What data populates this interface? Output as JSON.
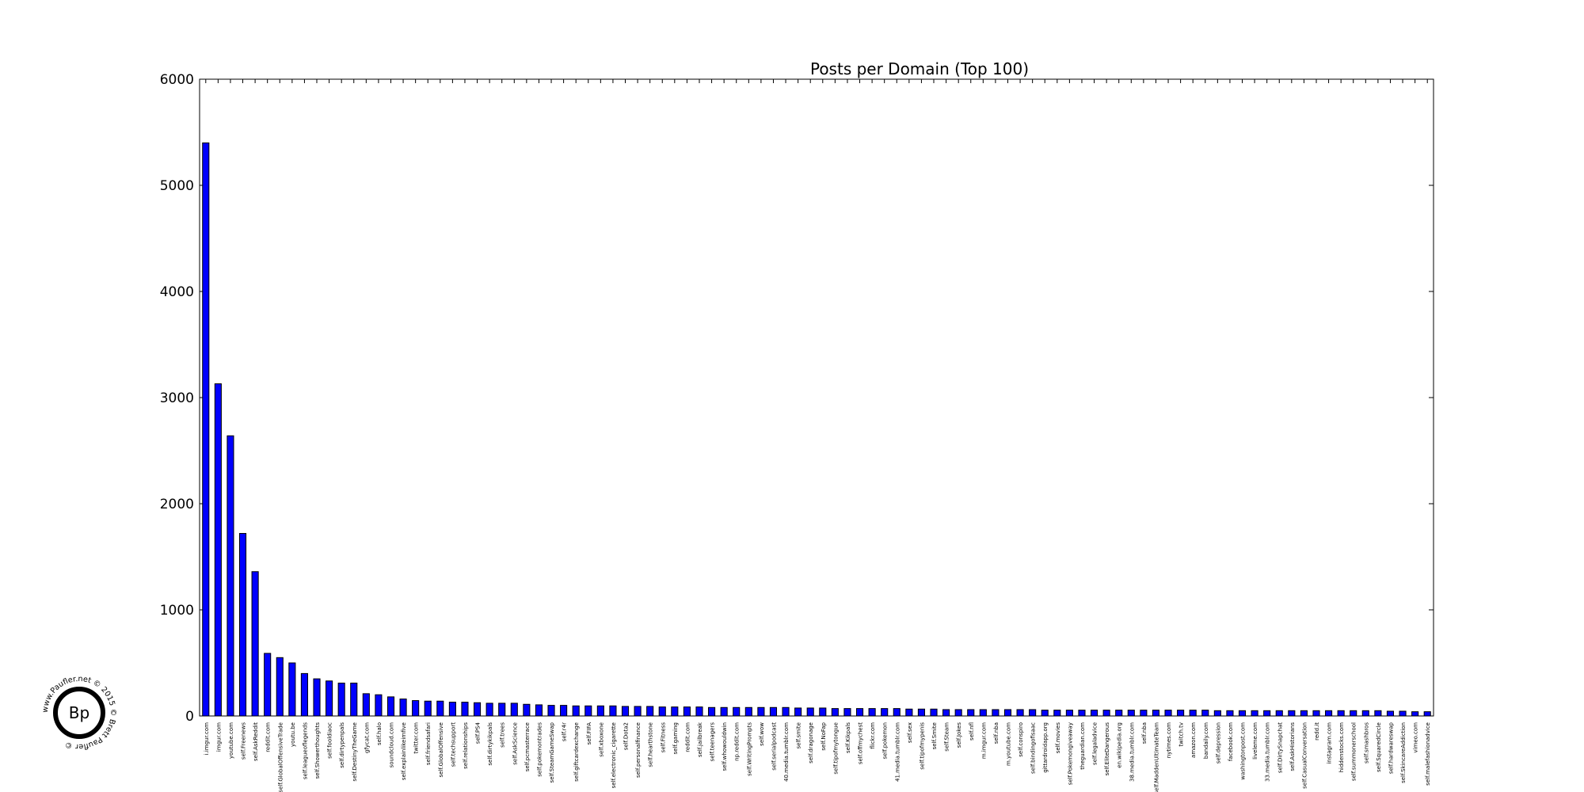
{
  "logo": {
    "initials": "Bp",
    "ring_text": "www.Paufler.net © 2015 © Brett Paufler © "
  },
  "chart_data": {
    "type": "bar",
    "title": "Posts per Domain (Top 100)",
    "xlabel": "",
    "ylabel": "",
    "ylim": [
      0,
      6000
    ],
    "yticks": [
      0,
      1000,
      2000,
      3000,
      4000,
      5000,
      6000
    ],
    "grid": false,
    "bar_color": "#0000ff",
    "categories": [
      "i.imgur.com",
      "imgur.com",
      "youtube.com",
      "self.Freenews",
      "self.AskReddit",
      "reddit.com",
      "self.GlobalOffensiveTrade",
      "youtu.be",
      "self.leagueoflegends",
      "self.Showerthoughts",
      "self.fooldiaoc",
      "self.dirtypenpals",
      "self.DestinyTheGame",
      "gfycat.com",
      "self.halo",
      "soundcloud.com",
      "self.explainlikeimfive",
      "twitter.com",
      "self.friendsafari",
      "self.GlobalOffensive",
      "self.techsupport",
      "self.relationships",
      "self.PS4",
      "self.dirtykikpals",
      "self.trees",
      "self.AskScience",
      "self.pcmasterrace",
      "self.pokemontrades",
      "self.SteamGameSwap",
      "self.r4r",
      "self.giftcardexchange",
      "self.FIFA",
      "self.xboxone",
      "self.electronic_cigarette",
      "self.Dota2",
      "self.personalfinance",
      "self.hearthstone",
      "self.Fitness",
      "self.gaming",
      "reddit.com",
      "self.jailbreak",
      "self.teenagers",
      "self.whowouldwin",
      "np.reddit.com",
      "self.WritingPrompts",
      "self.wow",
      "self.serialpodcast",
      "40.media.tumblr.com",
      "self.smite",
      "self.dragonage",
      "self.NoFap",
      "self.tipofmytongue",
      "self.Kikpals",
      "self.offmychest",
      "flickr.com",
      "self.pokemon",
      "41.media.tumblr.com",
      "self.sex",
      "self.tipofmypenis",
      "self.Smite",
      "self.Steam",
      "self.Jokes",
      "self.nfl",
      "m.imgur.com",
      "self.nba",
      "m.youtube.com",
      "self.conspiro",
      "self.bindingofisaac",
      "gittardroidapp.org",
      "self.movies",
      "self.Pokemongiveaway",
      "theguardian.com",
      "self.legaladvice",
      "self.EliteDangerous",
      "en.wikipedia.org",
      "38.media.tumblr.com",
      "self.nba",
      "self.MaddenUltimateTeam",
      "nytimes.com",
      "twitch.tv",
      "amazon.com",
      "bandaily.com",
      "self.depression",
      "facebook.com",
      "washingtonpost.com",
      "liveleme.com",
      "33.media.tumblr.com",
      "self.DirtySnapchat",
      "self.AskHistorians",
      "self.CasualConversation",
      "redd.it",
      "instagram.com",
      "hiddenstocks.com",
      "self.summonerschool",
      "self.smashbros",
      "self.SquaredCircle",
      "self.hardwareswap",
      "self.SkincareAddiction",
      "vimeo.com",
      "self.malefashionadvice"
    ],
    "values": [
      5400,
      3130,
      2640,
      1720,
      1360,
      590,
      550,
      500,
      400,
      350,
      330,
      310,
      310,
      210,
      200,
      180,
      160,
      145,
      140,
      140,
      130,
      130,
      125,
      120,
      120,
      120,
      110,
      105,
      100,
      100,
      95,
      95,
      95,
      95,
      90,
      90,
      90,
      85,
      85,
      85,
      85,
      80,
      80,
      80,
      80,
      80,
      80,
      80,
      75,
      75,
      75,
      70,
      70,
      70,
      70,
      70,
      70,
      65,
      65,
      65,
      60,
      60,
      60,
      60,
      60,
      60,
      60,
      60,
      55,
      55,
      55,
      55,
      55,
      55,
      55,
      55,
      55,
      55,
      55,
      55,
      55,
      55,
      50,
      50,
      50,
      50,
      50,
      50,
      50,
      50,
      50,
      50,
      50,
      50,
      50,
      50,
      45,
      45,
      40,
      40
    ]
  }
}
